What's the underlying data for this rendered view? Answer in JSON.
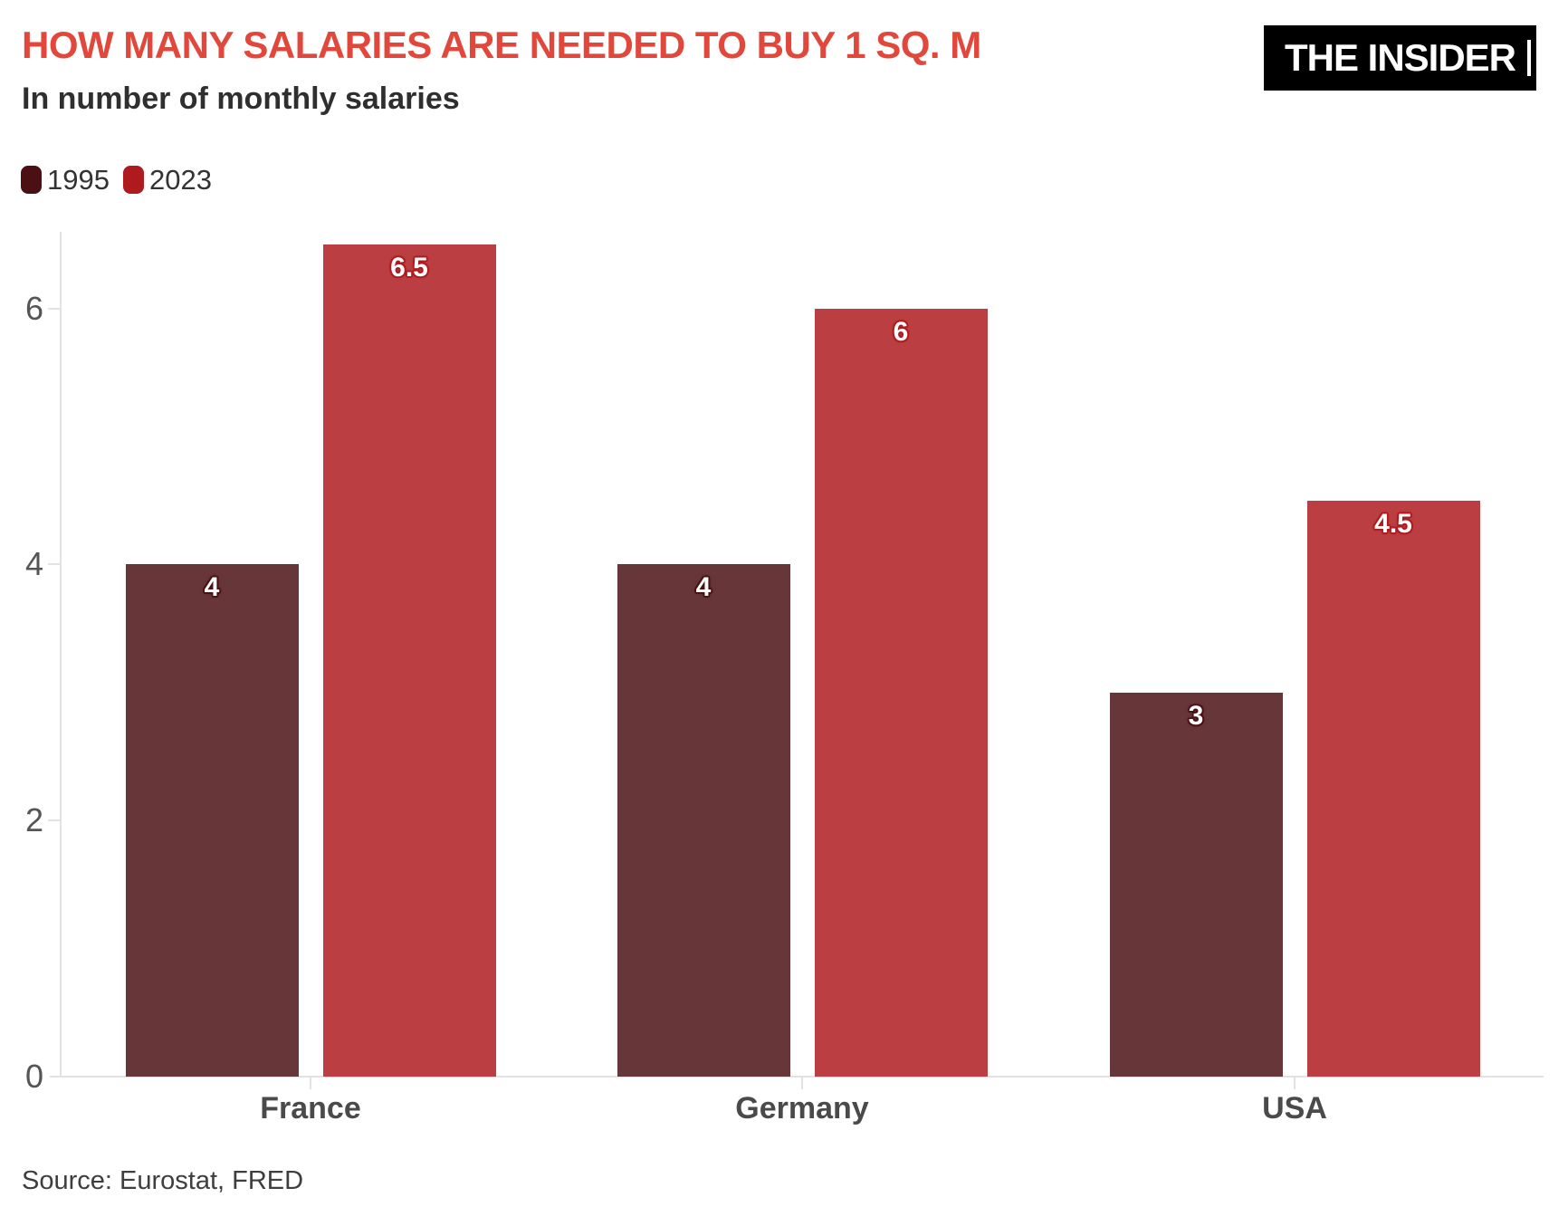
{
  "header": {
    "title": "HOW MANY SALARIES ARE NEEDED TO BUY 1 SQ. M",
    "subtitle": "In number of monthly salaries",
    "logo": "THE INSIDER"
  },
  "legend": {
    "items": [
      {
        "label": "1995"
      },
      {
        "label": "2023"
      }
    ]
  },
  "source": "Source: Eurostat, FRED",
  "colors": {
    "title": "#E1483B",
    "subtitle": "#2F2F2F",
    "axis_line": "#E2E2E2",
    "ytick_label": "#555555",
    "category_label": "#4A4A4A",
    "source_text": "#3E3E3E",
    "logo_bg": "#000000",
    "logo_text": "#FFFFFF",
    "background": "#FFFFFF"
  },
  "chart_data": {
    "type": "bar",
    "title": "HOW MANY SALARIES ARE NEEDED TO BUY 1 SQ. M",
    "subtitle": "In number of monthly salaries",
    "xlabel": "",
    "ylabel": "",
    "categories": [
      "France",
      "Germany",
      "USA"
    ],
    "series": [
      {
        "name": "1995",
        "values": [
          4,
          4,
          3
        ],
        "value_labels": [
          "4",
          "4",
          "3"
        ],
        "bar_color": "#663638",
        "accent_color": "#4A1013"
      },
      {
        "name": "2023",
        "values": [
          6.5,
          6,
          4.5
        ],
        "value_labels": [
          "6.5",
          "6",
          "4.5"
        ],
        "bar_color": "#BB3F42",
        "accent_color": "#AF1A1E"
      }
    ],
    "yticks": [
      0,
      2,
      4,
      6
    ],
    "ylim": [
      0,
      6.6
    ],
    "grid": false,
    "legend_position": "top-left",
    "value_label_position": "inside-top"
  }
}
